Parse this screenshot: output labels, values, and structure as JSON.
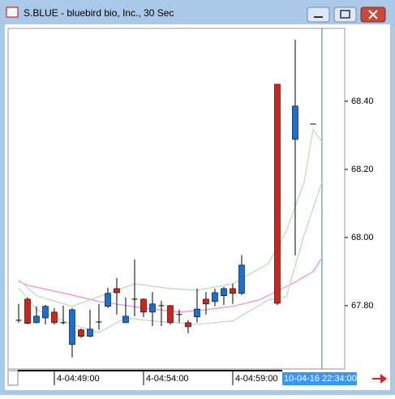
{
  "window": {
    "title": "S.BLUE - bluebird bio, Inc., 30 Sec"
  },
  "chart_data": {
    "type": "candlestick",
    "categories": [
      null,
      null,
      null,
      null,
      null,
      null,
      null,
      null,
      null,
      null,
      null,
      null,
      null,
      null,
      null,
      null,
      null,
      null,
      null,
      null,
      null,
      null,
      null,
      null,
      null,
      null,
      null,
      null,
      null,
      null,
      null,
      null,
      null,
      null
    ],
    "open": [
      67.757,
      67.819,
      67.75,
      67.764,
      67.781,
      67.75,
      67.686,
      67.729,
      67.71,
      67.752,
      67.798,
      67.85,
      67.75,
      67.819,
      67.819,
      67.781,
      67.8,
      67.8,
      67.774,
      67.75,
      67.767,
      67.819,
      67.812,
      67.829,
      67.85,
      67.836,
      null,
      null,
      null,
      68.45,
      null,
      68.288,
      null,
      68.333
    ],
    "high": [
      67.805,
      67.824,
      67.798,
      67.802,
      67.793,
      67.8,
      67.793,
      67.733,
      67.788,
      67.805,
      67.852,
      67.881,
      67.824,
      67.936,
      67.821,
      67.84,
      67.814,
      67.802,
      67.788,
      67.757,
      67.85,
      67.84,
      67.85,
      67.855,
      67.864,
      67.948,
      null,
      null,
      null,
      68.45,
      null,
      68.581,
      null,
      68.333
    ],
    "low": [
      67.75,
      67.745,
      67.748,
      67.745,
      67.745,
      67.745,
      67.648,
      67.705,
      67.707,
      67.729,
      67.793,
      67.774,
      67.75,
      67.769,
      67.767,
      67.74,
      67.74,
      67.745,
      67.75,
      67.719,
      67.75,
      67.774,
      67.798,
      67.802,
      67.805,
      67.831,
      null,
      null,
      null,
      67.802,
      null,
      67.948,
      null,
      68.333
    ],
    "close": [
      67.757,
      67.748,
      67.769,
      67.798,
      67.75,
      67.75,
      67.788,
      67.71,
      67.731,
      67.752,
      67.836,
      67.838,
      67.769,
      67.819,
      67.781,
      67.805,
      67.8,
      67.75,
      67.774,
      67.738,
      67.79,
      67.805,
      67.838,
      67.85,
      67.836,
      67.919,
      null,
      null,
      null,
      67.807,
      null,
      68.386,
      null,
      68.333
    ],
    "up_color": "#1a6fd6",
    "down_color": "#d42218",
    "flat_color": "#000000",
    "overlays": [
      {
        "color": "#f08ad0",
        "x": [
          0,
          1,
          6,
          9,
          14,
          18,
          21,
          24,
          27,
          31,
          33,
          34
        ],
        "values": [
          67.871,
          67.86,
          67.831,
          67.812,
          67.793,
          67.781,
          67.788,
          67.798,
          67.817,
          67.869,
          67.9,
          67.94
        ]
      },
      {
        "color": "#b9dcb9",
        "x": [
          0,
          2,
          6,
          10,
          13,
          17,
          20,
          24,
          28,
          30,
          32,
          33,
          34
        ],
        "values": [
          67.876,
          67.829,
          67.798,
          67.836,
          67.864,
          67.85,
          67.845,
          67.864,
          67.924,
          68.019,
          68.162,
          68.317,
          68.281
        ]
      },
      {
        "color": "#b9dcb9",
        "x": [
          0,
          2,
          6,
          9,
          12,
          15,
          20,
          24,
          28,
          30,
          32,
          34
        ],
        "values": [
          67.852,
          67.788,
          67.745,
          67.721,
          67.764,
          67.755,
          67.745,
          67.755,
          67.817,
          67.826,
          68.007,
          68.162
        ]
      }
    ],
    "ylim": [
      67.614,
      68.614
    ],
    "yticks": [
      {
        "value": 67.8,
        "label": "67.80"
      },
      {
        "value": 68.0,
        "label": "68.00"
      },
      {
        "value": 68.2,
        "label": "68.20"
      },
      {
        "value": 68.4,
        "label": "68.40"
      }
    ],
    "xlim": [
      -1.18,
      36.55
    ],
    "xticks": [
      {
        "value": 4,
        "label": "4-04:49:00"
      },
      {
        "value": 14,
        "label": "4-04:54:00"
      },
      {
        "value": 24,
        "label": "4-04:59:00"
      }
    ],
    "cursor": {
      "value": 34,
      "label": "10-04-16 22:34:00"
    }
  }
}
